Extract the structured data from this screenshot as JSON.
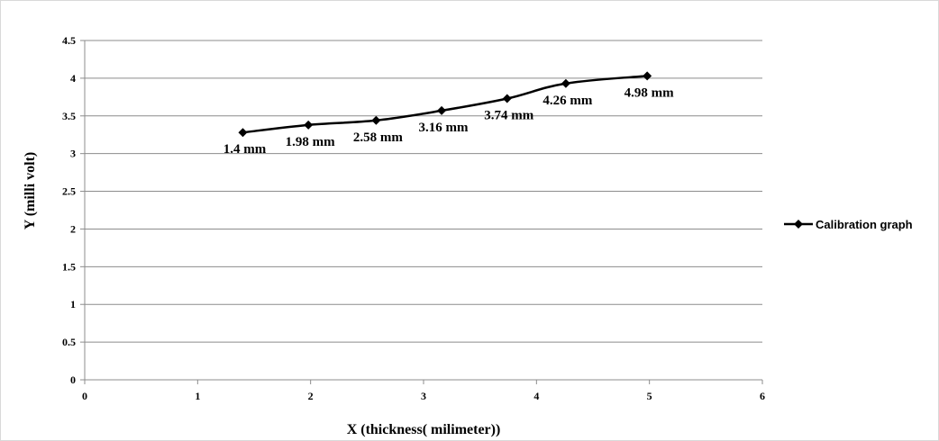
{
  "chart_data": {
    "type": "line",
    "title": "",
    "xlabel": "X (thickness( milimeter))",
    "ylabel": "Y (milli volt)",
    "xlim": [
      0,
      6
    ],
    "ylim": [
      0,
      4.5
    ],
    "x_ticks": [
      "0",
      "1",
      "2",
      "3",
      "4",
      "5",
      "6"
    ],
    "y_ticks": [
      "0",
      "0.5",
      "1",
      "1.5",
      "2",
      "2.5",
      "3",
      "3.5",
      "4",
      "4.5"
    ],
    "grid": "horizontal",
    "legend_position": "right",
    "series": [
      {
        "name": "Calibration graph",
        "color": "#000000",
        "marker": "diamond",
        "x": [
          1.4,
          1.98,
          2.58,
          3.16,
          3.74,
          4.26,
          4.98
        ],
        "y": [
          3.28,
          3.38,
          3.44,
          3.57,
          3.73,
          3.93,
          4.03
        ],
        "data_labels": [
          "1.4 mm",
          "1.98 mm",
          "2.58 mm",
          "3.16 mm",
          "3.74 mm",
          "4.26 mm",
          "4.98 mm"
        ]
      }
    ]
  }
}
